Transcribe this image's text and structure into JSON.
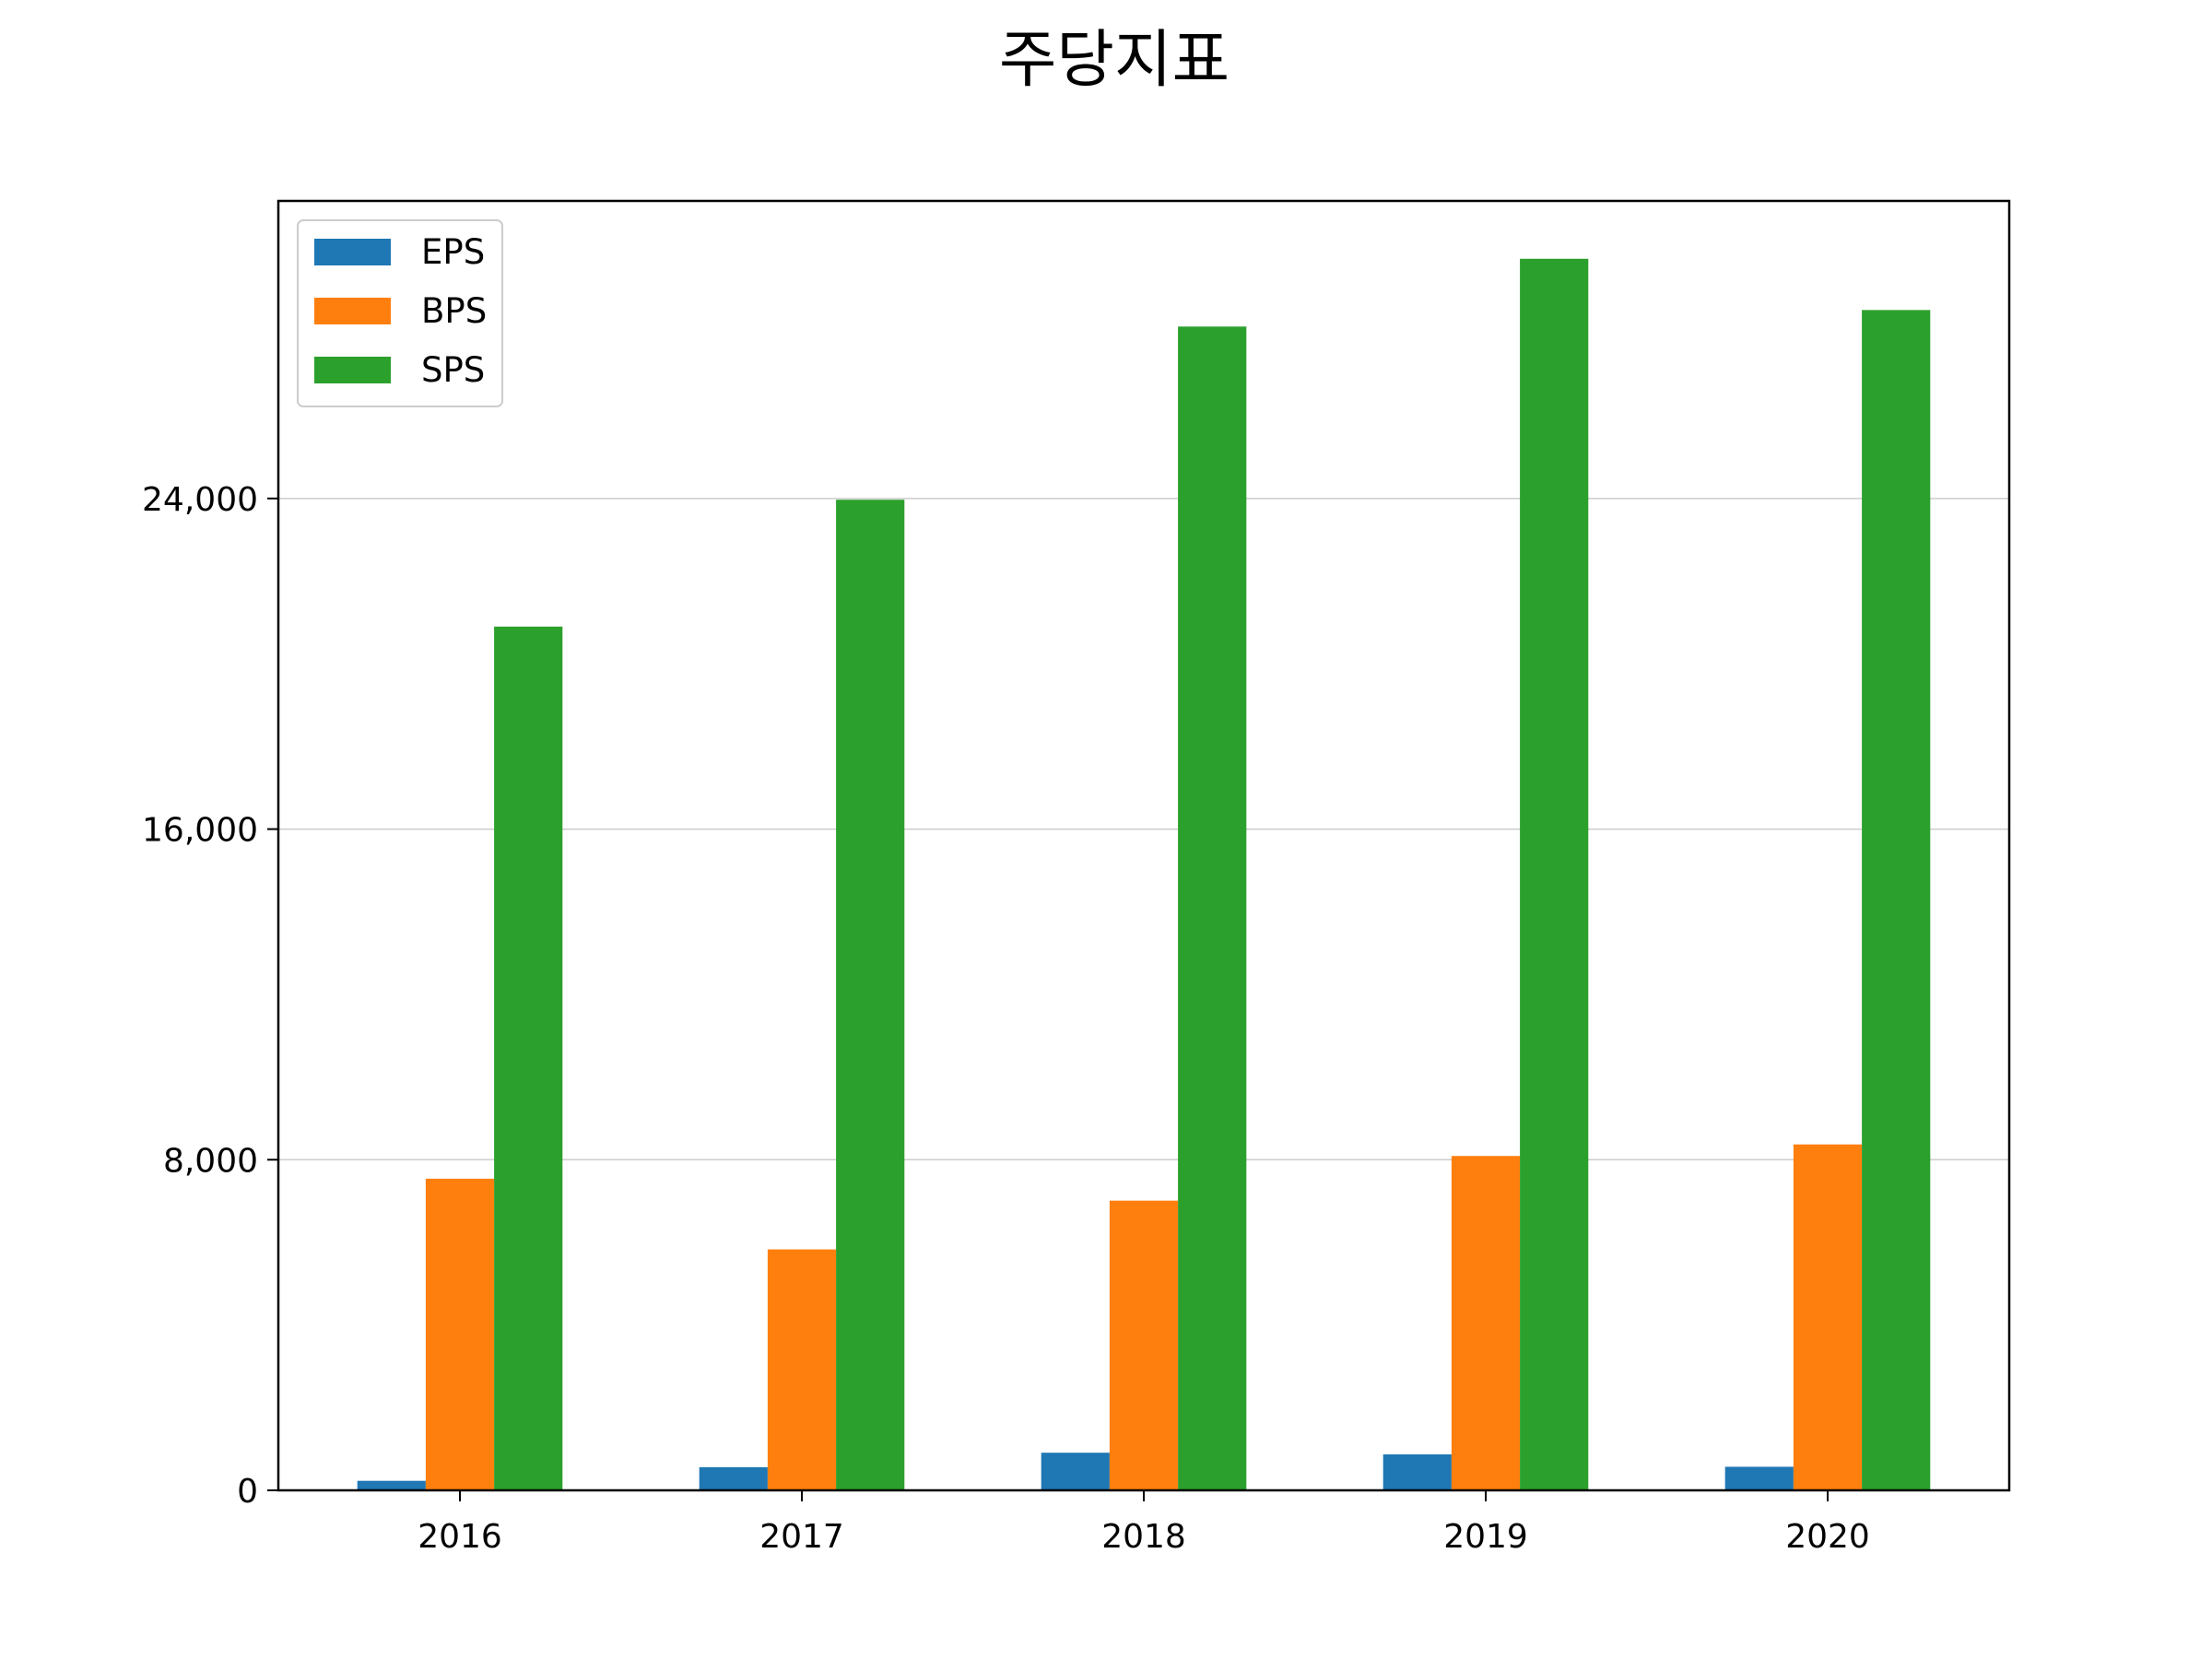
{
  "chart_data": {
    "type": "bar",
    "title": "주당지표",
    "xlabel": "",
    "ylabel": "",
    "categories": [
      "2016",
      "2017",
      "2018",
      "2019",
      "2020"
    ],
    "series": [
      {
        "name": "EPS",
        "color": "#1f77b4",
        "values": [
          230,
          560,
          910,
          870,
          570
        ]
      },
      {
        "name": "BPS",
        "color": "#ff7f0e",
        "values": [
          7540,
          5830,
          7010,
          8090,
          8370
        ]
      },
      {
        "name": "SPS",
        "color": "#2ca02c",
        "values": [
          20900,
          23970,
          28160,
          29800,
          28560
        ]
      }
    ],
    "yticks": [
      0,
      8000,
      16000,
      24000
    ],
    "ytick_labels": [
      "0",
      "8,000",
      "16,000",
      "24,000"
    ],
    "ylim": [
      0,
      31200
    ],
    "grid": "y",
    "legend_position": "top-left"
  }
}
